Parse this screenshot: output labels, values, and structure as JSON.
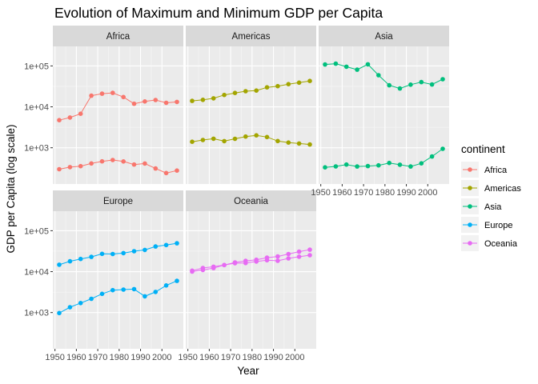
{
  "chart_data": {
    "type": "line",
    "title": "Evolution of Maximum and Minimum GDP per Capita",
    "xlabel": "Year",
    "ylabel": "GDP per Capita (log scale)",
    "y_scale": "log10",
    "ylim": [
      130,
      300000
    ],
    "xlim": [
      1949,
      2010
    ],
    "x_ticks": [
      1950,
      1960,
      1970,
      1980,
      1990,
      2000
    ],
    "x_tick_labels": [
      "1950",
      "1960",
      "1970",
      "1980",
      "1990",
      "2000"
    ],
    "y_ticks": [
      1000,
      10000,
      100000
    ],
    "y_tick_labels": [
      "1e+03",
      "1e+04",
      "1e+05"
    ],
    "grid": true,
    "legend_title": "continent",
    "legend_position": "right",
    "years": [
      1952,
      1957,
      1962,
      1967,
      1972,
      1977,
      1982,
      1987,
      1992,
      1997,
      2002,
      2007
    ],
    "facets": [
      {
        "name": "Africa",
        "color": "#F8766D",
        "series": [
          {
            "values": [
              4725,
              5487,
              6757,
              18773,
              21011,
              21951,
              17364,
              11864,
              13522,
              14723,
              12522,
              13206
            ]
          },
          {
            "values": [
              299,
              336,
              355,
              413,
              464,
              502,
              462,
              389,
              411,
              312,
              241,
              277
            ]
          }
        ]
      },
      {
        "name": "Americas",
        "color": "#A3A500",
        "series": [
          {
            "values": [
              13990,
              14847,
              16173,
              19530,
              21806,
              24073,
              25009,
              29884,
              32004,
              35767,
              39097,
              42952
            ]
          },
          {
            "values": [
              1398,
              1544,
              1663,
              1452,
              1654,
              1874,
              2011,
              1823,
              1456,
              1342,
              1270,
              1202
            ]
          }
        ]
      },
      {
        "name": "Asia",
        "color": "#00BF7D",
        "series": [
          {
            "values": [
              108382,
              113523,
              95458,
              80895,
              109348,
              59265,
              33693,
              28118,
              34932,
              40301,
              35110,
              47307
            ]
          },
          {
            "values": [
              331,
              350,
              388,
              349,
              357,
              371,
              424,
              385,
              348,
              415,
              611,
              944
            ]
          }
        ]
      },
      {
        "name": "Europe",
        "color": "#00B0F6",
        "series": [
          {
            "values": [
              14734,
              17909,
              20431,
              22966,
              27195,
              26982,
              28398,
              31541,
              33966,
              41283,
              44684,
              49357
            ]
          },
          {
            "values": [
              974,
              1354,
              1710,
              2172,
              2860,
              3528,
              3631,
              3739,
              2497,
              3193,
              4604,
              5937
            ]
          }
        ]
      },
      {
        "name": "Oceania",
        "color": "#E76BF3",
        "series": [
          {
            "values": [
              10557,
              12247,
              13176,
              14526,
              16788,
              18334,
              19477,
              21889,
              23425,
              26998,
              30688,
              34435
            ]
          },
          {
            "values": [
              10040,
              10950,
              12218,
              14463,
              16046,
              16234,
              17632,
              19007,
              18363,
              21050,
              23190,
              25185
            ]
          }
        ]
      }
    ]
  }
}
